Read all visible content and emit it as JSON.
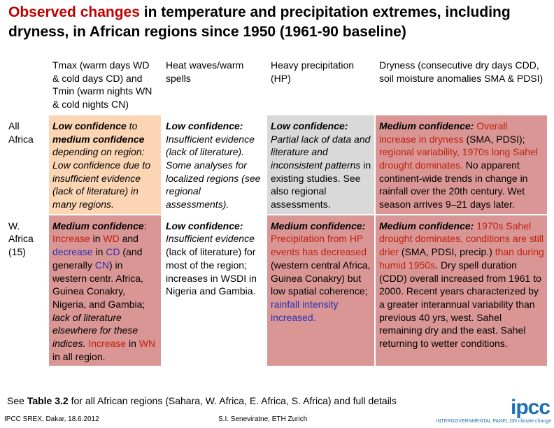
{
  "title": [
    {
      "text": "Observed changes",
      "color": "#c00000"
    },
    {
      "text": " in temperature and precipitation extremes, including dryness, in African regions since 1950 (1961-90 baseline)",
      "color": "#000000"
    }
  ],
  "table": {
    "header": [
      "",
      "Tmax (warm days WD & cold days CD) and Tmin (warm nights WN & cold nights CN)",
      "Heat waves/warm spells",
      "Heavy precipitation (HP)",
      "Dryness (consecutive dry days CDD, soil moisture anomalies SMA & PDSI)"
    ],
    "rows": [
      {
        "label": "All Africa",
        "cells": [
          {
            "background": "#fcd5b4",
            "segments": [
              {
                "text": "Low confidence",
                "bold": true,
                "italic": true
              },
              {
                "text": " to ",
                "italic": true
              },
              {
                "text": "medium confidence",
                "bold": true,
                "italic": true
              },
              {
                "text": " depending on region: Low confidence due to insufficient evidence (lack of literature) in many regions.",
                "italic": true
              }
            ]
          },
          {
            "background": "#ffffff",
            "segments": [
              {
                "text": "Low confidence:",
                "bold": true,
                "italic": true
              },
              {
                "text": " Insufficient evidence (lack of literature). Some analyses for localized regions (see regional assessments).",
                "italic": true
              }
            ]
          },
          {
            "background": "#d9d9d9",
            "segments": [
              {
                "text": "Low confidence:",
                "bold": true,
                "italic": true
              },
              {
                "text": " Partial lack of data and literature and inconsistent patterns",
                "italic": true
              },
              {
                "text": " in existing studies. See also regional assessments."
              }
            ]
          },
          {
            "background": "#d99694",
            "segments": [
              {
                "text": "Medium confidence:",
                "bold": true,
                "italic": true
              },
              {
                "text": " Overall increase in dryness",
                "color": "#c0200f"
              },
              {
                "text": " (SMA, PDSI); "
              },
              {
                "text": "regional variability, 1970s long Sahel drought dominates.",
                "color": "#c0200f"
              },
              {
                "text": " No apparent continent-wide trends in change in rainfall over the 20th century. Wet season arrives 9–21 days later."
              }
            ]
          }
        ]
      },
      {
        "label": "W. Africa (15)",
        "cells": [
          {
            "background": "#d99694",
            "segments": [
              {
                "text": "Medium confidence",
                "bold": true,
                "italic": true
              },
              {
                "text": ": "
              },
              {
                "text": "Increase",
                "color": "#c0200f"
              },
              {
                "text": " in "
              },
              {
                "text": "WD",
                "color": "#c0200f"
              },
              {
                "text": " and "
              },
              {
                "text": "decrease",
                "color": "#2a2fb8"
              },
              {
                "text": " in "
              },
              {
                "text": "CD",
                "color": "#2a2fb8"
              },
              {
                "text": " (and generally "
              },
              {
                "text": "CN",
                "color": "#2a2fb8"
              },
              {
                "text": ") in western centr. Africa, Guinea Conakry, Nigeria, and Gambia; "
              },
              {
                "text": "lack of literature elsewhere for these indices.",
                "italic": true
              },
              {
                "text": " "
              },
              {
                "text": "Increase",
                "color": "#c0200f"
              },
              {
                "text": " in "
              },
              {
                "text": "WN",
                "color": "#c0200f"
              },
              {
                "text": " in all region."
              }
            ]
          },
          {
            "background": "#ffffff",
            "segments": [
              {
                "text": "Low confidence:",
                "bold": true,
                "italic": true
              },
              {
                "text": " Insufficient evidence",
                "italic": true
              },
              {
                "text": " (lack of literature) for most of the region; increases in WSDI in Nigeria and Gambia."
              }
            ]
          },
          {
            "background": "#d99694",
            "segments": [
              {
                "text": "Medium confidence:",
                "bold": true,
                "italic": true
              },
              {
                "text": " Precipitation from HP events has decreased",
                "color": "#c0200f"
              },
              {
                "text": " (western central Africa, Guinea Conakry) but low spatial coherence; "
              },
              {
                "text": "rainfall intensity increased.",
                "color": "#2a2fb8"
              }
            ]
          },
          {
            "background": "#d99694",
            "segments": [
              {
                "text": "Medium confidence:",
                "bold": true,
                "italic": true
              },
              {
                "text": " 1970s Sahel drought dominates, conditions are still drier",
                "color": "#c0200f"
              },
              {
                "text": " (SMA, PDSI, precip.) "
              },
              {
                "text": "than during humid 1950s",
                "color": "#c0200f"
              },
              {
                "text": ". Dry spell duration (CDD) overall increased from 1961 to 2000. Recent years characterized by a greater interannual variability than previous 40 yrs, west. Sahel remaining dry and the east. Sahel returning to wetter conditions."
              }
            ]
          }
        ]
      }
    ]
  },
  "note": [
    {
      "text": "See "
    },
    {
      "text": "Table 3.2",
      "bold": true
    },
    {
      "text": " for all African regions (Sahara, W. Africa, E. Africa, S. Africa) and full details"
    }
  ],
  "footer": {
    "source": "IPCC SREX, Dakar, 18.6.2012",
    "author": "S.I. Seneviratne, ETH Zurich",
    "logo": "ipcc",
    "logo_caption": "INTERGOVERNMENTAL PANEL ON climate change"
  }
}
